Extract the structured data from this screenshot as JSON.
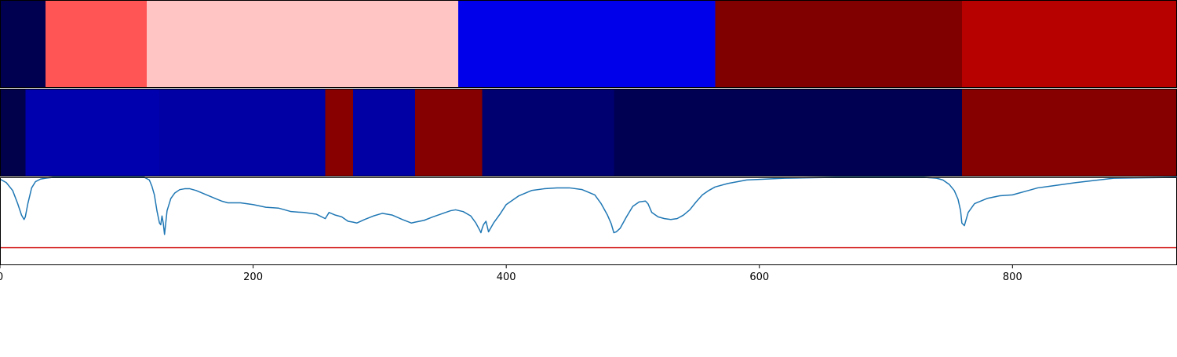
{
  "chart_data": {
    "type": "heatmap",
    "x_range": [
      0,
      930
    ],
    "x_ticks": [
      0,
      200,
      400,
      600,
      800
    ],
    "grid": false,
    "legend": "none",
    "segments_row1": [
      {
        "start": 0,
        "end": 36,
        "color": "#000050"
      },
      {
        "start": 36,
        "end": 116,
        "color": "#ff5555"
      },
      {
        "start": 116,
        "end": 362,
        "color": "#ffc4c4"
      },
      {
        "start": 362,
        "end": 565,
        "color": "#0000ea"
      },
      {
        "start": 565,
        "end": 760,
        "color": "#800000"
      },
      {
        "start": 760,
        "end": 930,
        "color": "#b70000"
      }
    ],
    "segments_row2": [
      {
        "start": 0,
        "end": 20,
        "color": "#00004b"
      },
      {
        "start": 20,
        "end": 126,
        "color": "#0000ae"
      },
      {
        "start": 126,
        "end": 257,
        "color": "#0000a4"
      },
      {
        "start": 257,
        "end": 279,
        "color": "#890000"
      },
      {
        "start": 279,
        "end": 328,
        "color": "#0000a4"
      },
      {
        "start": 328,
        "end": 381,
        "color": "#850000"
      },
      {
        "start": 381,
        "end": 485,
        "color": "#000071"
      },
      {
        "start": 485,
        "end": 760,
        "color": "#000052"
      },
      {
        "start": 760,
        "end": 930,
        "color": "#870000"
      }
    ],
    "line_series": {
      "color": "#1f77b4",
      "y_range": [
        0,
        1
      ],
      "x": [
        0,
        5,
        10,
        14,
        17,
        19,
        20,
        22,
        25,
        28,
        32,
        36,
        42,
        50,
        60,
        80,
        100,
        114,
        118,
        120,
        122,
        124,
        126,
        127,
        128,
        129,
        130,
        132,
        135,
        138,
        142,
        146,
        150,
        155,
        160,
        165,
        170,
        175,
        180,
        190,
        200,
        210,
        220,
        230,
        240,
        250,
        257,
        260,
        265,
        270,
        275,
        279,
        282,
        288,
        295,
        302,
        310,
        318,
        325,
        328,
        335,
        342,
        350,
        356,
        360,
        366,
        372,
        376,
        379,
        380,
        381,
        382,
        384,
        386,
        390,
        395,
        400,
        410,
        420,
        430,
        440,
        450,
        460,
        470,
        475,
        480,
        483,
        485,
        487,
        490,
        495,
        500,
        505,
        510,
        512,
        515,
        520,
        525,
        530,
        535,
        540,
        545,
        550,
        555,
        560,
        565,
        575,
        590,
        620,
        660,
        700,
        730,
        740,
        745,
        750,
        754,
        757,
        759,
        760,
        762,
        765,
        770,
        780,
        790,
        800,
        805,
        810,
        815,
        820,
        830,
        850,
        880,
        930
      ],
      "y": [
        0.98,
        0.94,
        0.85,
        0.7,
        0.57,
        0.52,
        0.55,
        0.7,
        0.88,
        0.95,
        0.98,
        0.99,
        1.0,
        1.0,
        1.0,
        1.0,
        1.0,
        1.0,
        0.97,
        0.9,
        0.8,
        0.62,
        0.48,
        0.46,
        0.56,
        0.48,
        0.35,
        0.62,
        0.76,
        0.82,
        0.86,
        0.87,
        0.87,
        0.85,
        0.82,
        0.79,
        0.76,
        0.73,
        0.71,
        0.71,
        0.69,
        0.66,
        0.65,
        0.61,
        0.6,
        0.58,
        0.53,
        0.6,
        0.57,
        0.55,
        0.5,
        0.49,
        0.48,
        0.52,
        0.56,
        0.59,
        0.57,
        0.52,
        0.48,
        0.49,
        0.51,
        0.55,
        0.59,
        0.62,
        0.63,
        0.61,
        0.56,
        0.48,
        0.4,
        0.37,
        0.42,
        0.46,
        0.5,
        0.38,
        0.48,
        0.58,
        0.69,
        0.79,
        0.85,
        0.87,
        0.88,
        0.88,
        0.86,
        0.8,
        0.7,
        0.57,
        0.47,
        0.37,
        0.38,
        0.42,
        0.55,
        0.67,
        0.72,
        0.73,
        0.7,
        0.6,
        0.55,
        0.53,
        0.52,
        0.53,
        0.57,
        0.63,
        0.72,
        0.8,
        0.85,
        0.89,
        0.93,
        0.97,
        0.99,
        1.0,
        1.0,
        1.0,
        0.99,
        0.97,
        0.92,
        0.85,
        0.75,
        0.62,
        0.48,
        0.45,
        0.6,
        0.7,
        0.76,
        0.79,
        0.8,
        0.82,
        0.84,
        0.86,
        0.88,
        0.9,
        0.94,
        0.99,
        1.0,
        1.0
      ]
    },
    "threshold": {
      "y": 0.2,
      "color": "#d62728"
    }
  }
}
